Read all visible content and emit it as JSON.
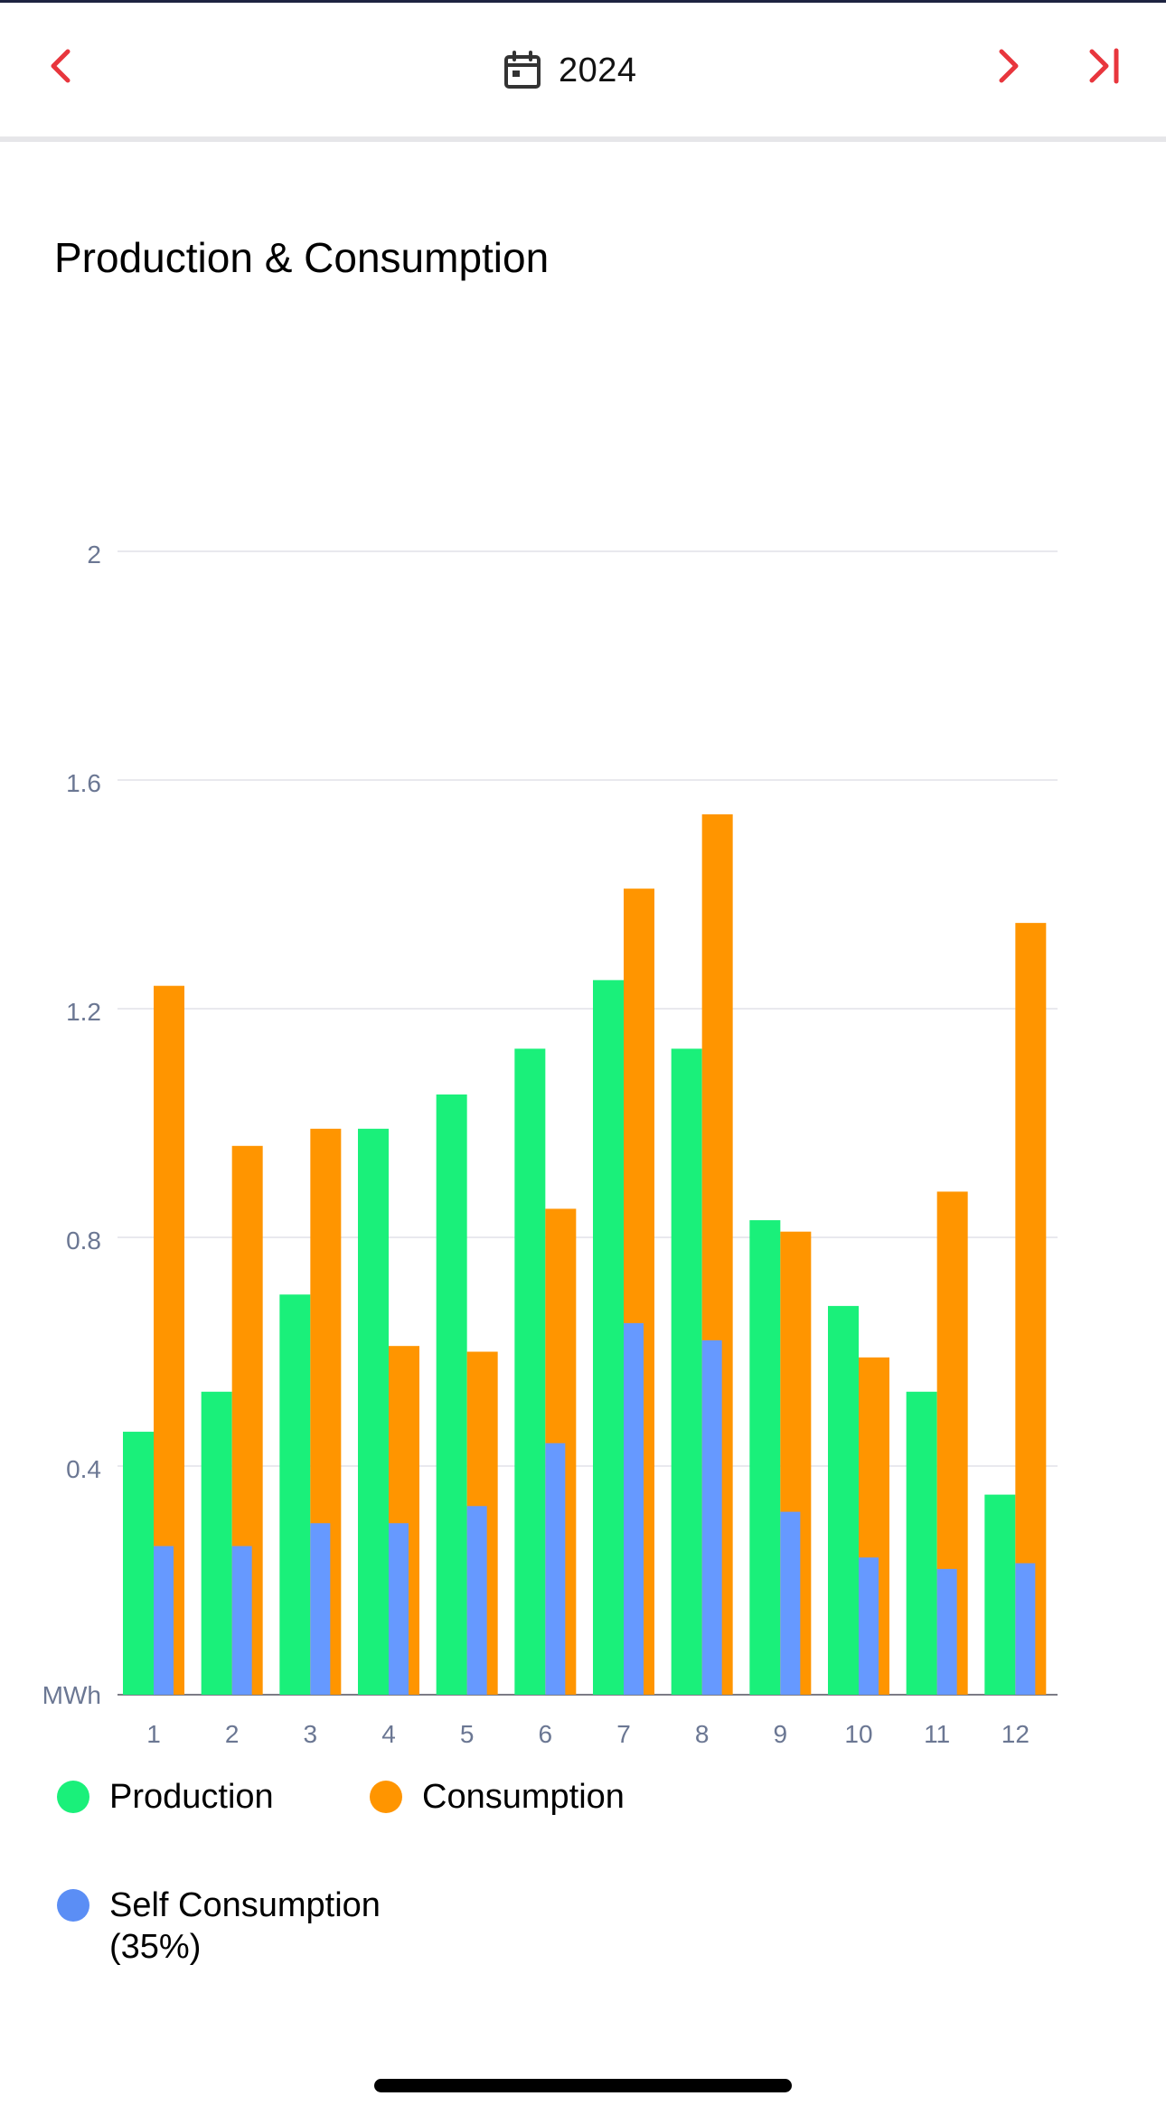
{
  "header": {
    "year": "2024",
    "accent_color": "#e8363d"
  },
  "card": {
    "title": "Production & Consumption"
  },
  "chart_data": {
    "type": "bar",
    "categories": [
      "1",
      "2",
      "3",
      "4",
      "5",
      "6",
      "7",
      "8",
      "9",
      "10",
      "11",
      "12"
    ],
    "series": [
      {
        "name": "Production",
        "color": "#1af07a",
        "values": [
          0.46,
          0.53,
          0.7,
          0.99,
          1.05,
          1.13,
          1.25,
          1.13,
          0.83,
          0.68,
          0.53,
          0.35
        ]
      },
      {
        "name": "Consumption",
        "color": "#ff9500",
        "values": [
          1.24,
          0.96,
          0.99,
          0.61,
          0.6,
          0.85,
          1.41,
          1.54,
          0.81,
          0.59,
          0.88,
          1.35
        ]
      },
      {
        "name": "Self Consumption",
        "color": "#6699ff",
        "values": [
          0.26,
          0.26,
          0.3,
          0.3,
          0.33,
          0.44,
          0.65,
          0.62,
          0.32,
          0.24,
          0.22,
          0.23
        ]
      }
    ],
    "unit_label": "MWh",
    "yticks": [
      "2",
      "1.6",
      "1.2",
      "0.8",
      "0.4"
    ],
    "ylim": [
      0,
      2
    ],
    "grid": true
  },
  "legend": {
    "production": {
      "label": "Production",
      "color": "#1af07a"
    },
    "consumption": {
      "label": "Consumption",
      "color": "#ff9500"
    },
    "self_consumption": {
      "label": "Self Consumption",
      "sub": "(35%)",
      "color": "#6699ff"
    }
  }
}
